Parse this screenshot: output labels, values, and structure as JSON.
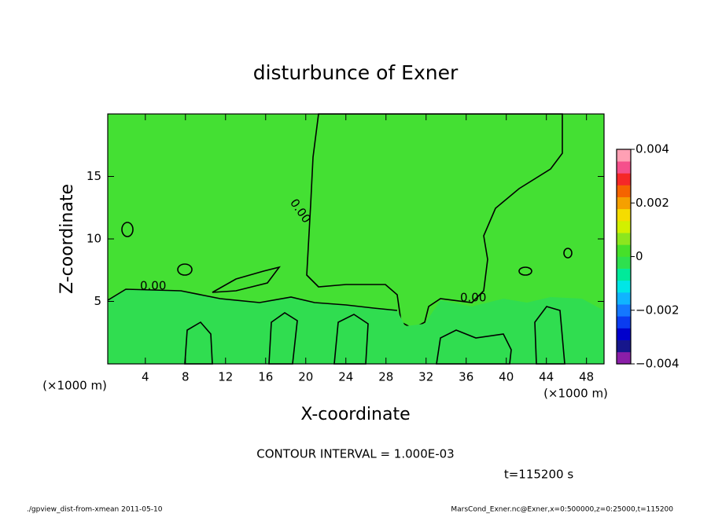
{
  "chart_data": {
    "type": "contour",
    "title": "disturbunce of Exner",
    "x_label": "X-coordinate",
    "y_label": "Z-coordinate",
    "x_unit": "(×1000 m)",
    "y_unit": "(×1000 m)",
    "xlim": [
      0.25,
      49.75
    ],
    "ylim": [
      0,
      20
    ],
    "xticks": [
      4,
      8,
      12,
      16,
      20,
      24,
      28,
      32,
      36,
      40,
      44,
      48
    ],
    "yticks": [
      5,
      10,
      15
    ],
    "contour_labels": [
      "0.00",
      "0.00",
      "0.00"
    ],
    "contour_interval": "CONTOUR INTERVAL = 1.000E-03",
    "time": "t=115200 s",
    "clim": [
      -0.004,
      0.004
    ],
    "cticks": [
      {
        "value": -0.004,
        "label": "−0.004"
      },
      {
        "value": -0.002,
        "label": "−0.002"
      },
      0,
      0.002,
      0.004
    ],
    "colors": [
      "#8a1ea8",
      "#16168c",
      "#0000cc",
      "#0a3cf0",
      "#1478ff",
      "#10b4ff",
      "#00e6e6",
      "#00ea9a",
      "#2ee04e",
      "#46e02a",
      "#8ce61e",
      "#d2f000",
      "#f5dc00",
      "#f5a000",
      "#f56400",
      "#f52828",
      "#f5508c",
      "#ffa0b4"
    ],
    "footer_left": "./gpview_dist-from-xmean  2011-05-10",
    "footer_right": "MarsCond_Exner.nc@Exner,x=0:500000,z=0:25000,t=115200"
  }
}
